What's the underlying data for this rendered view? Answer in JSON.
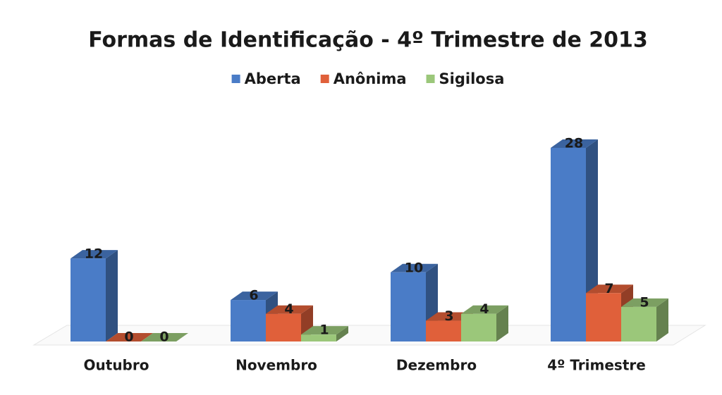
{
  "chart_data": {
    "type": "bar",
    "title": "Formas de Identificação - 4º Trimestre de 2013",
    "categories": [
      "Outubro",
      "Novembro",
      "Dezembro",
      "4º Trimestre"
    ],
    "series": [
      {
        "name": "Aberta",
        "color": "#4a7cc7",
        "values": [
          12,
          6,
          10,
          28
        ]
      },
      {
        "name": "Anônima",
        "color": "#e0603a",
        "values": [
          0,
          4,
          3,
          7
        ]
      },
      {
        "name": "Sigilosa",
        "color": "#9bc77a",
        "values": [
          0,
          1,
          4,
          5
        ]
      }
    ],
    "legend": "top"
  }
}
